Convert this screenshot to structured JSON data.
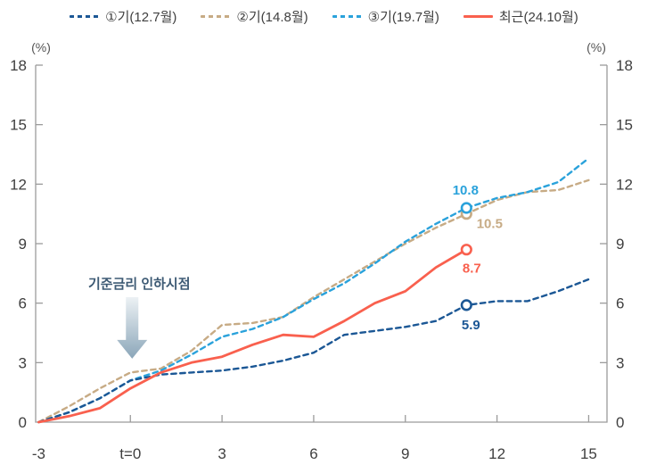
{
  "page": {
    "background": "#ffffff"
  },
  "legend": {
    "items": [
      {
        "label": "①기(12.7월)",
        "color": "#1b5795",
        "line_style": "dashed"
      },
      {
        "label": "②기(14.8월)",
        "color": "#c7ab85",
        "line_style": "dashed"
      },
      {
        "label": "③기(19.7월)",
        "color": "#2aa2db",
        "line_style": "dashed"
      },
      {
        "label": "최근(24.10월)",
        "color": "#f9604e",
        "line_style": "solid"
      }
    ]
  },
  "axes": {
    "left_unit_label": "(%)",
    "right_unit_label": "(%)",
    "axis_color": "#9b9b9b",
    "tick_label_color": "#3f3f3f",
    "unit_label_color": "#555555"
  },
  "annotation": {
    "text": "기준금리 인하시점",
    "text_color": "#3d5a74",
    "arrow_gradient_top": "#ecf1f4",
    "arrow_gradient_bottom": "#8ba6b9",
    "x_position": 0,
    "arrow_tip_value": 3.2
  },
  "chart_data": {
    "type": "line",
    "title": "",
    "xlabel": "",
    "ylabel": "(%)",
    "grid": false,
    "legend_position": "top",
    "xlim": [
      -3.1,
      15.6
    ],
    "ylim": [
      0,
      18
    ],
    "y_ticks": [
      0,
      3,
      6,
      9,
      12,
      15,
      18
    ],
    "x_ticks": [
      0,
      3,
      6,
      9,
      12,
      15
    ],
    "x_tick_labels": [
      {
        "x": -3,
        "label": "-3"
      },
      {
        "x": 0,
        "label": "t=0"
      },
      {
        "x": 3,
        "label": "3"
      },
      {
        "x": 6,
        "label": "6"
      },
      {
        "x": 9,
        "label": "9"
      },
      {
        "x": 12,
        "label": "12"
      },
      {
        "x": 15,
        "label": "15"
      }
    ],
    "x": [
      -3,
      -2,
      -1,
      0,
      1,
      2,
      3,
      4,
      5,
      6,
      7,
      8,
      9,
      10,
      11,
      12,
      13,
      14,
      15
    ],
    "series": [
      {
        "name": "①기(12.7월)",
        "color": "#1b5795",
        "line_style": "dashed",
        "values": [
          0,
          0.5,
          1.2,
          2.1,
          2.4,
          2.5,
          2.6,
          2.8,
          3.1,
          3.5,
          4.4,
          4.6,
          4.8,
          5.1,
          5.9,
          6.1,
          6.1,
          6.6,
          7.2
        ],
        "end_marker": {
          "x": 11,
          "value": 5.9,
          "label": "5.9"
        }
      },
      {
        "name": "②기(14.8월)",
        "color": "#c7ab85",
        "line_style": "dashed",
        "values": [
          0,
          0.8,
          1.7,
          2.5,
          2.7,
          3.6,
          4.9,
          5.0,
          5.3,
          6.3,
          7.2,
          8.1,
          9.0,
          9.8,
          10.5,
          11.2,
          11.6,
          11.7,
          12.2
        ],
        "end_marker": {
          "x": 11,
          "value": 10.5,
          "label": "10.5"
        }
      },
      {
        "name": "③기(19.7월)",
        "color": "#2aa2db",
        "line_style": "dashed",
        "values": [
          0,
          0.5,
          1.2,
          2.1,
          2.6,
          3.4,
          4.3,
          4.7,
          5.3,
          6.2,
          7.0,
          8.0,
          9.1,
          10.0,
          10.8,
          11.3,
          11.6,
          12.1,
          13.3
        ],
        "end_marker": {
          "x": 11,
          "value": 10.8,
          "label": "10.8"
        }
      },
      {
        "name": "최근(24.10월)",
        "color": "#f9604e",
        "line_style": "solid",
        "values": [
          0,
          0.3,
          0.7,
          1.7,
          2.5,
          3.0,
          3.3,
          3.9,
          4.4,
          4.3,
          5.1,
          6.0,
          6.6,
          7.8,
          8.7
        ],
        "end_marker": {
          "x": 11,
          "value": 8.7,
          "label": "8.7"
        }
      }
    ]
  }
}
